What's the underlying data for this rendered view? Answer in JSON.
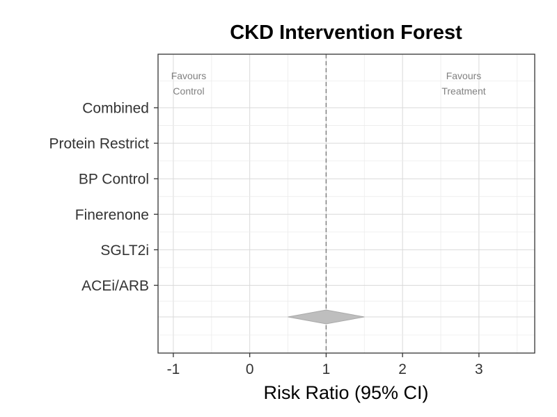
{
  "chart_data": {
    "type": "forest",
    "title": "CKD Intervention Forest",
    "xlabel": "Risk Ratio (95% CI)",
    "ylabel": "",
    "xlim": [
      -1.2,
      3.73
    ],
    "xticks": [
      -1,
      0,
      1,
      2,
      3
    ],
    "xtick_labels": [
      "-1",
      "0",
      "1",
      "2",
      "3"
    ],
    "reference_line": 1,
    "categories": [
      "Combined",
      "Protein Restrict",
      "BP Control",
      "Finerenone",
      "SGLT2i",
      "ACEi/ARB"
    ],
    "studies": [],
    "summary": {
      "estimate": 1.0,
      "lower": 0.5,
      "upper": 1.5,
      "color": "#BEBEBE"
    },
    "annotations": {
      "left": [
        "Favours",
        "Control"
      ],
      "right": [
        "Favours",
        "Treatment"
      ]
    },
    "grid": true,
    "colors": {
      "grid": "#EBEBEB",
      "grid_major": "#D9D9D9",
      "reference": "#808080",
      "summary_fill": "#BEBEBE",
      "summary_edge": "#A9A9A9"
    }
  }
}
